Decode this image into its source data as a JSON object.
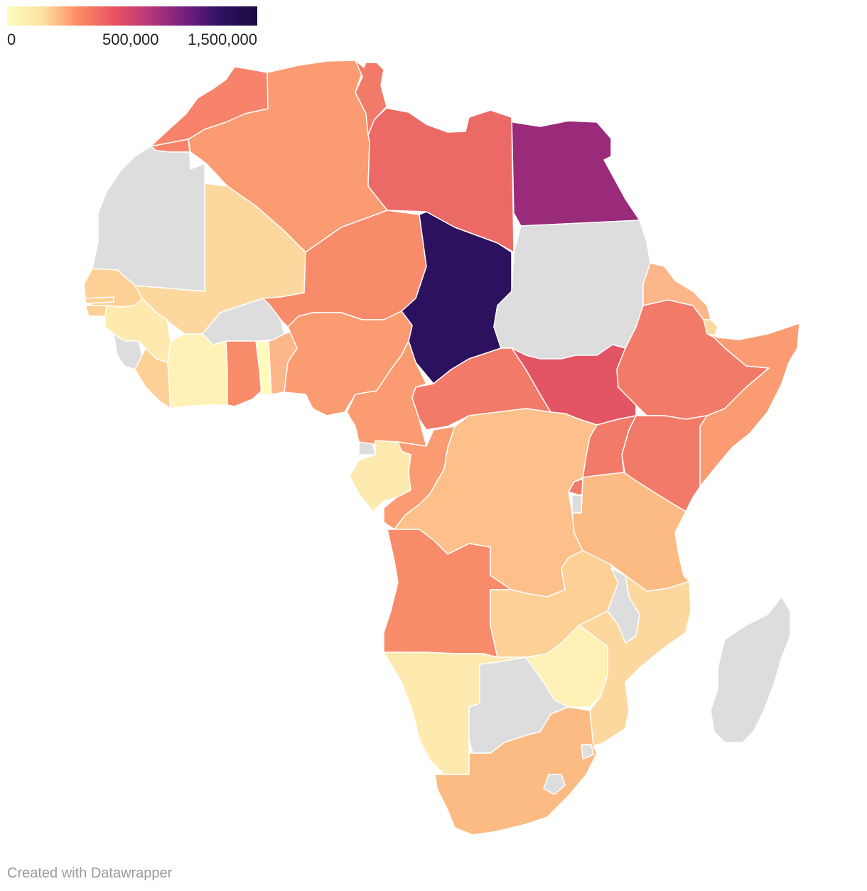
{
  "legend": {
    "labels": [
      "0",
      "500,000",
      "1,500,000"
    ],
    "gradient": [
      "#fcfdbf",
      "#fde2a3",
      "#fc8961",
      "#e85362",
      "#b73779",
      "#721f81",
      "#2c115f",
      "#1b0c41"
    ]
  },
  "colors": {
    "no_data": "#dddddd",
    "border": "#ffffff"
  },
  "regions": [
    {
      "name": "Morocco",
      "color": "#f6836a"
    },
    {
      "name": "Western Sahara",
      "color": "#f6836a"
    },
    {
      "name": "Algeria",
      "color": "#fb9b71"
    },
    {
      "name": "Tunisia",
      "color": "#f27a68"
    },
    {
      "name": "Libya",
      "color": "#ec6a65"
    },
    {
      "name": "Egypt",
      "color": "#992b7a"
    },
    {
      "name": "Mauritania",
      "color": "#dddddd"
    },
    {
      "name": "Mali",
      "color": "#fdd89e"
    },
    {
      "name": "Niger",
      "color": "#f88b6a"
    },
    {
      "name": "Chad",
      "color": "#2c115f"
    },
    {
      "name": "Sudan",
      "color": "#dddddd"
    },
    {
      "name": "Senegal",
      "color": "#fdd196"
    },
    {
      "name": "Gambia",
      "color": "#fdd196"
    },
    {
      "name": "Guinea-Bissau",
      "color": "#fdd196"
    },
    {
      "name": "Guinea",
      "color": "#fee9ae"
    },
    {
      "name": "Sierra Leone",
      "color": "#dddddd"
    },
    {
      "name": "Liberia",
      "color": "#fdd196"
    },
    {
      "name": "Cote d'Ivoire",
      "color": "#fff2b7"
    },
    {
      "name": "Burkina Faso",
      "color": "#dddddd"
    },
    {
      "name": "Ghana",
      "color": "#f88b6a"
    },
    {
      "name": "Togo",
      "color": "#fffcbc"
    },
    {
      "name": "Benin",
      "color": "#fcb689"
    },
    {
      "name": "Nigeria",
      "color": "#fb9b71"
    },
    {
      "name": "Cameroon",
      "color": "#fb9b71"
    },
    {
      "name": "Central African Republic",
      "color": "#f27a68"
    },
    {
      "name": "South Sudan",
      "color": "#e35564"
    },
    {
      "name": "Ethiopia",
      "color": "#f27a68"
    },
    {
      "name": "Eritrea",
      "color": "#fcb689"
    },
    {
      "name": "Djibouti",
      "color": "#fdd89e"
    },
    {
      "name": "Somalia",
      "color": "#fb9b71"
    },
    {
      "name": "Kenya",
      "color": "#f27a68"
    },
    {
      "name": "Uganda",
      "color": "#f27a68"
    },
    {
      "name": "Rwanda",
      "color": "#f27a68"
    },
    {
      "name": "Burundi",
      "color": "#dddddd"
    },
    {
      "name": "Equatorial Guinea",
      "color": "#dddddd"
    },
    {
      "name": "Gabon",
      "color": "#fee9ae"
    },
    {
      "name": "Republic of the Congo",
      "color": "#fb9b71"
    },
    {
      "name": "Democratic Republic of the Congo",
      "color": "#fdc08a"
    },
    {
      "name": "Tanzania",
      "color": "#fdbb84"
    },
    {
      "name": "Angola",
      "color": "#f88b6a"
    },
    {
      "name": "Zambia",
      "color": "#fdd196"
    },
    {
      "name": "Malawi",
      "color": "#dddddd"
    },
    {
      "name": "Mozambique",
      "color": "#fdd89e"
    },
    {
      "name": "Namibia",
      "color": "#fee9ae"
    },
    {
      "name": "Botswana",
      "color": "#dddddd"
    },
    {
      "name": "Zimbabwe",
      "color": "#fff0b5"
    },
    {
      "name": "South Africa",
      "color": "#fdbb84"
    },
    {
      "name": "Lesotho",
      "color": "#dddddd"
    },
    {
      "name": "Eswatini",
      "color": "#dddddd"
    },
    {
      "name": "Madagascar",
      "color": "#dddddd"
    }
  ],
  "credit": "Created with Datawrapper"
}
